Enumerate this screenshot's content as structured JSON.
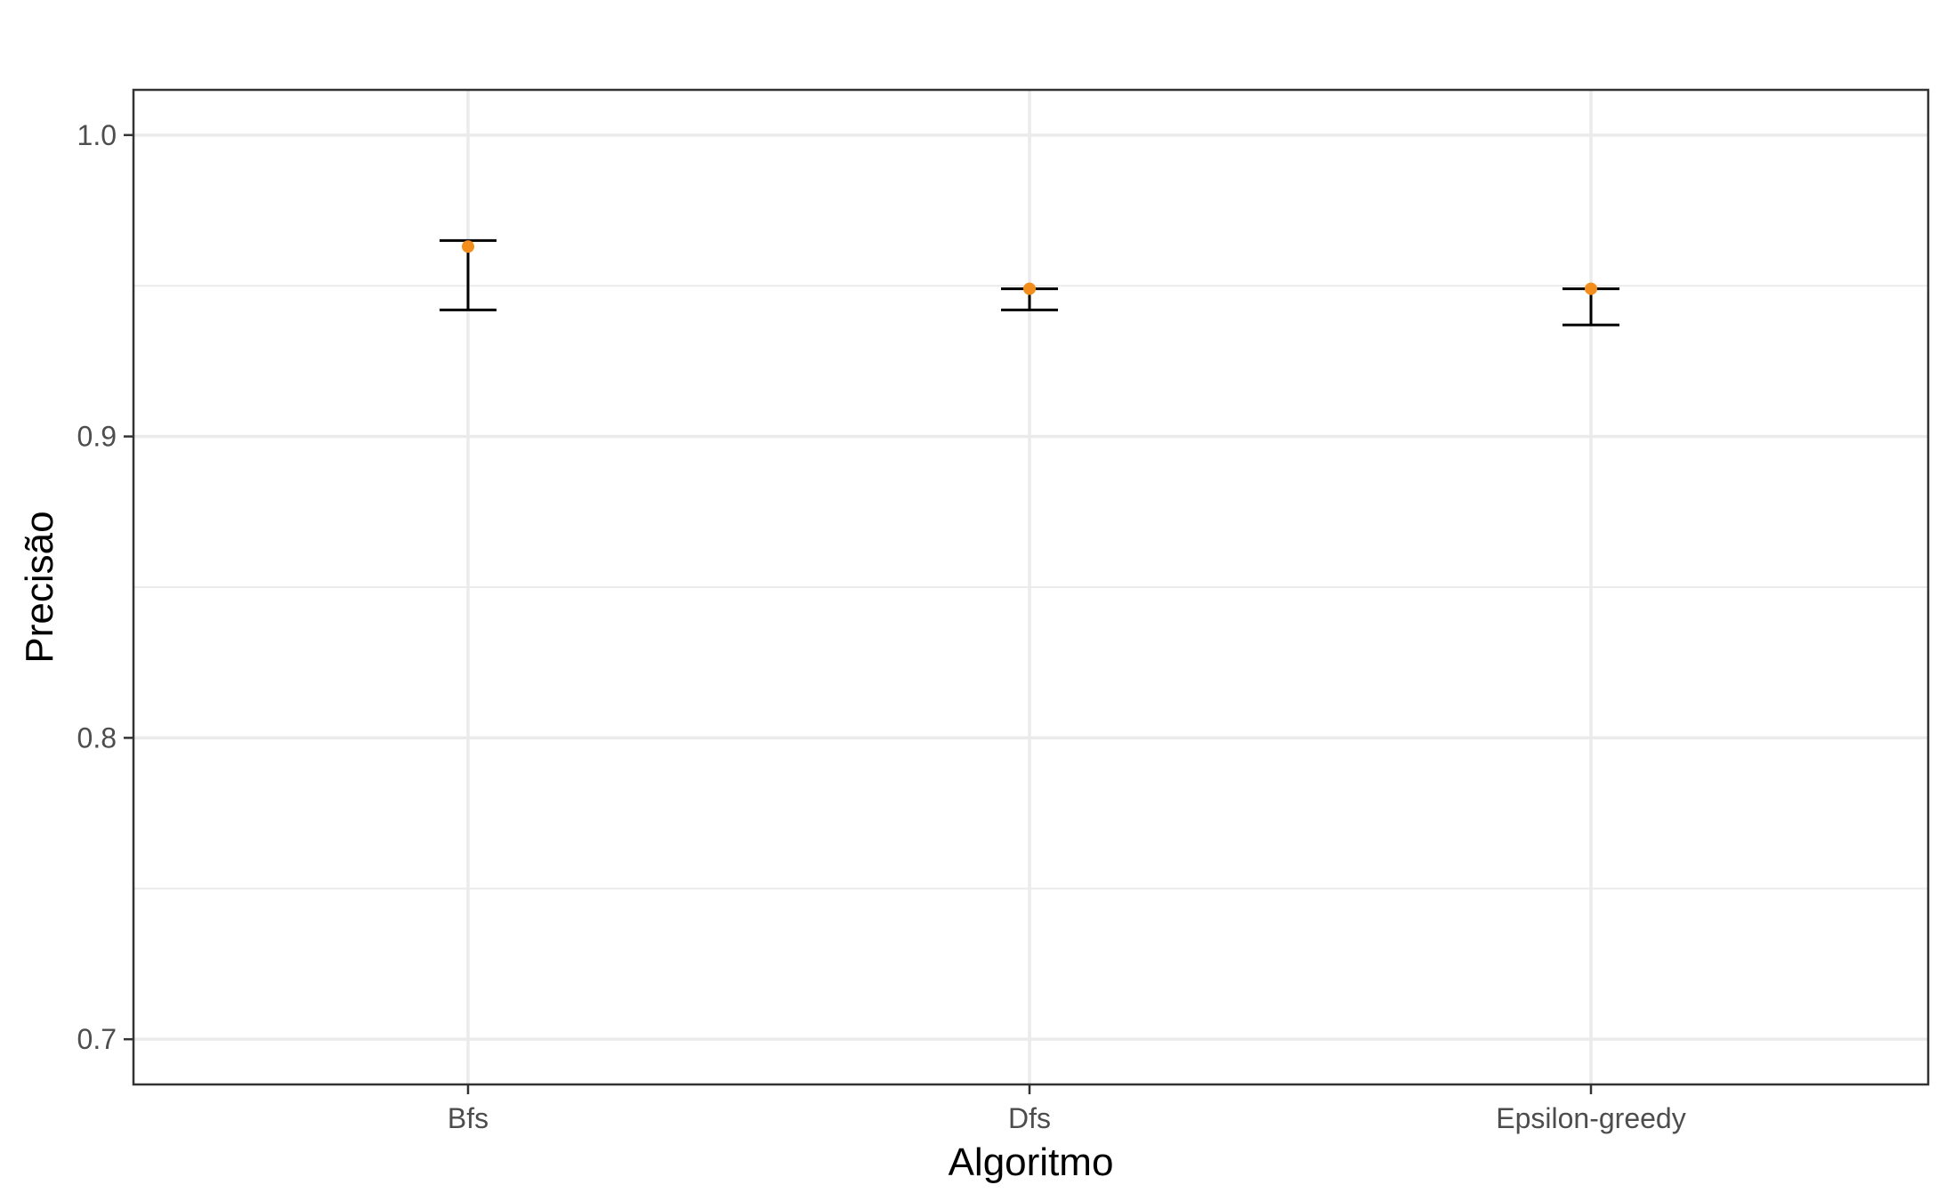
{
  "chart_data": {
    "type": "scatter",
    "xlabel": "Algoritmo",
    "ylabel": "Precisão",
    "categories": [
      "Bfs",
      "Dfs",
      "Epsilon-greedy"
    ],
    "points": [
      {
        "category": "Bfs",
        "value": 0.963,
        "lower": 0.942,
        "upper": 0.965
      },
      {
        "category": "Dfs",
        "value": 0.949,
        "lower": 0.942,
        "upper": 0.949
      },
      {
        "category": "Epsilon-greedy",
        "value": 0.949,
        "lower": 0.937,
        "upper": 0.949
      }
    ],
    "ylim": [
      0.685,
      1.015
    ],
    "y_major_ticks": [
      0.7,
      0.8,
      0.9,
      1.0
    ],
    "y_tick_labels": [
      "0.7",
      "0.8",
      "0.9",
      "1.0"
    ],
    "y_minor_ticks": [
      0.75,
      0.85,
      0.95
    ],
    "grid": true,
    "legend": "none",
    "colors": {
      "point": "#f28e1c",
      "errorbar": "#000000",
      "grid": "#ebebeb",
      "panel_border": "#333333"
    }
  }
}
